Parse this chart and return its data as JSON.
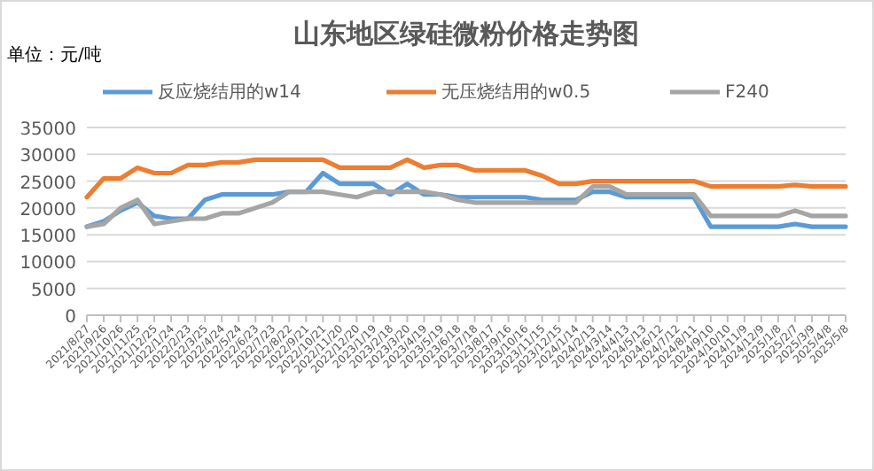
{
  "chart_data": {
    "type": "line",
    "title": "山东地区绿硅微粉价格走势图",
    "annotations": [
      "单位：元/吨"
    ],
    "categories": [
      "2021/8/27",
      "2021/9/26",
      "2021/10/26",
      "2021/11/25",
      "2021/12/25",
      "2022/1/24",
      "2022/2/23",
      "2022/3/25",
      "2022/4/24",
      "2022/5/24",
      "2022/6/23",
      "2022/7/23",
      "2022/8/22",
      "2022/9/21",
      "2022/10/21",
      "2022/11/20",
      "2022/12/20",
      "2023/1/19",
      "2023/2/18",
      "2023/3/20",
      "2023/4/19",
      "2023/5/19",
      "2023/6/18",
      "2023/7/18",
      "2023/8/17",
      "2023/9/16",
      "2023/10/16",
      "2023/11/15",
      "2023/12/15",
      "2024/1/14",
      "2024/2/13",
      "2024/3/14",
      "2024/4/13",
      "2024/5/13",
      "2024/6/12",
      "2024/7/12",
      "2024/8/11",
      "2024/9/10",
      "2024/10/10",
      "2024/11/9",
      "2024/12/9",
      "2025/1/8",
      "2025/2/7",
      "2025/3/9",
      "2025/4/8",
      "2025/5/8"
    ],
    "series": [
      {
        "name": "反应烧结用的w14",
        "color": "#5b9bd5",
        "values": [
          16500,
          17500,
          19500,
          21000,
          18500,
          18000,
          18000,
          21500,
          22500,
          22500,
          22500,
          22500,
          23000,
          23000,
          26500,
          24500,
          24500,
          24500,
          22500,
          24500,
          22500,
          22500,
          22000,
          22000,
          22000,
          22000,
          22000,
          21500,
          21500,
          21500,
          23000,
          23000,
          22000,
          22000,
          22000,
          22000,
          22000,
          16500,
          16500,
          16500,
          16500,
          16500,
          17000,
          16500,
          16500,
          16500
        ]
      },
      {
        "name": "无压烧结用的w0.5",
        "color": "#ed7d31",
        "values": [
          22000,
          25500,
          25500,
          27500,
          26500,
          26500,
          28000,
          28000,
          28500,
          28500,
          29000,
          29000,
          29000,
          29000,
          29000,
          27500,
          27500,
          27500,
          27500,
          29000,
          27500,
          28000,
          28000,
          27000,
          27000,
          27000,
          27000,
          26000,
          24500,
          24500,
          25000,
          25000,
          25000,
          25000,
          25000,
          25000,
          25000,
          24000,
          24000,
          24000,
          24000,
          24000,
          24300,
          24000,
          24000,
          24000
        ]
      },
      {
        "name": "F240",
        "color": "#a5a5a5",
        "values": [
          16500,
          17000,
          20000,
          21500,
          17000,
          17500,
          18000,
          18000,
          19000,
          19000,
          20000,
          21000,
          23000,
          23000,
          23000,
          22500,
          22000,
          23000,
          23000,
          23000,
          23000,
          22500,
          21500,
          21000,
          21000,
          21000,
          21000,
          21000,
          21000,
          21000,
          24000,
          24000,
          22500,
          22500,
          22500,
          22500,
          22500,
          18500,
          18500,
          18500,
          18500,
          18500,
          19500,
          18500,
          18500,
          18500
        ]
      }
    ],
    "ylim": [
      0,
      35000
    ],
    "yticks": [
      0,
      5000,
      10000,
      15000,
      20000,
      25000,
      30000,
      35000
    ],
    "grid": "y",
    "legend": "top",
    "marker": "none",
    "line_style": "solid"
  }
}
